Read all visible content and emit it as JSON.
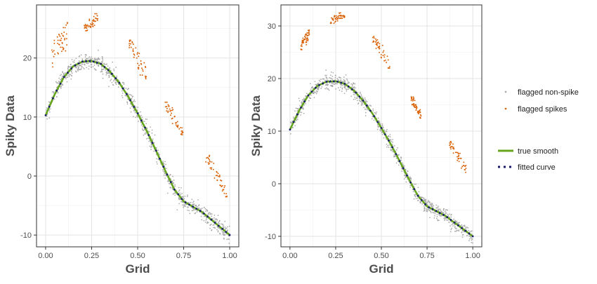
{
  "chart_data": [
    {
      "type": "scatter",
      "panel": "left",
      "xlabel": "Grid",
      "ylabel": "Spiky Data",
      "xlim": [
        0,
        1
      ],
      "ylim": [
        -12,
        29
      ],
      "x_ticks": [
        0,
        0.25,
        0.5,
        0.75,
        1
      ],
      "x_tick_labels": [
        "0.00",
        "0.25",
        "0.50",
        "0.75",
        "1.00"
      ],
      "y_ticks": [
        -10,
        0,
        10,
        20
      ],
      "y_tick_labels": [
        "-10",
        "0",
        "10",
        "20"
      ],
      "grid": true,
      "series": [
        {
          "name": "flagged non-spike",
          "kind": "points",
          "color": "#a6a6a6",
          "description_free": true,
          "x": [
            0.0,
            0.05,
            0.1,
            0.15,
            0.2,
            0.25,
            0.3,
            0.35,
            0.4,
            0.45,
            0.5,
            0.55,
            0.6,
            0.65,
            0.7,
            0.75,
            0.8,
            0.85,
            0.9,
            0.95,
            1.0
          ],
          "y": [
            10.3,
            13.9,
            16.8,
            18.6,
            19.4,
            19.5,
            19.0,
            17.7,
            15.8,
            13.4,
            10.6,
            7.6,
            4.3,
            0.9,
            -2.3,
            -4.3,
            -5.2,
            -6.1,
            -7.4,
            -8.7,
            -10.0
          ]
        },
        {
          "name": "flagged spikes",
          "kind": "points",
          "color": "#d95f02",
          "clusters": [
            {
              "x": [
                0.03,
                0.12
              ],
              "y": [
                18.5,
                26
              ]
            },
            {
              "x": [
                0.21,
                0.29
              ],
              "y": [
                24.5,
                27.5
              ]
            },
            {
              "x": [
                0.45,
                0.55
              ],
              "y": [
                16.5,
                23
              ]
            },
            {
              "x": [
                0.65,
                0.75
              ],
              "y": [
                7,
                12.5
              ]
            },
            {
              "x": [
                0.87,
                0.99
              ],
              "y": [
                -3.5,
                3.5
              ]
            }
          ]
        },
        {
          "name": "true smooth",
          "kind": "line",
          "color": "#66a61e",
          "x": [
            0.0,
            0.05,
            0.1,
            0.15,
            0.2,
            0.25,
            0.3,
            0.35,
            0.4,
            0.45,
            0.5,
            0.55,
            0.6,
            0.65,
            0.7,
            0.75,
            0.8,
            0.85,
            0.9,
            0.95,
            1.0
          ],
          "y": [
            10.3,
            13.9,
            16.8,
            18.6,
            19.4,
            19.5,
            19.0,
            17.7,
            15.8,
            13.4,
            10.6,
            7.6,
            4.3,
            0.9,
            -2.3,
            -4.3,
            -5.2,
            -6.1,
            -7.4,
            -8.7,
            -10.0
          ]
        },
        {
          "name": "fitted curve",
          "kind": "dotted",
          "color": "#1b1b6e",
          "x": [
            0.0,
            0.05,
            0.1,
            0.15,
            0.2,
            0.25,
            0.3,
            0.35,
            0.4,
            0.45,
            0.5,
            0.55,
            0.6,
            0.65,
            0.7,
            0.75,
            0.8,
            0.85,
            0.9,
            0.95,
            1.0
          ],
          "y": [
            10.3,
            13.9,
            16.8,
            18.6,
            19.4,
            19.5,
            19.0,
            17.7,
            15.8,
            13.4,
            10.6,
            7.6,
            4.3,
            0.9,
            -2.3,
            -4.3,
            -5.2,
            -6.1,
            -7.4,
            -8.7,
            -10.0
          ]
        }
      ]
    },
    {
      "type": "scatter",
      "panel": "right",
      "xlabel": "Grid",
      "ylabel": "Spiky Data",
      "xlim": [
        0,
        1
      ],
      "ylim": [
        -12,
        34
      ],
      "x_ticks": [
        0,
        0.25,
        0.5,
        0.75,
        1
      ],
      "x_tick_labels": [
        "0.00",
        "0.25",
        "0.50",
        "0.75",
        "1.00"
      ],
      "y_ticks": [
        -10,
        0,
        10,
        20,
        30
      ],
      "y_tick_labels": [
        "-10",
        "0",
        "10",
        "20",
        "30"
      ],
      "grid": true,
      "series": [
        {
          "name": "flagged non-spike",
          "kind": "points",
          "color": "#a6a6a6",
          "x": [
            0.0,
            0.05,
            0.1,
            0.15,
            0.2,
            0.25,
            0.3,
            0.35,
            0.4,
            0.45,
            0.5,
            0.55,
            0.6,
            0.65,
            0.7,
            0.75,
            0.8,
            0.85,
            0.9,
            0.95,
            1.0
          ],
          "y": [
            10.3,
            13.9,
            16.8,
            18.6,
            19.4,
            19.5,
            19.0,
            17.7,
            15.8,
            13.4,
            10.6,
            7.6,
            4.3,
            0.9,
            -2.3,
            -4.3,
            -5.2,
            -6.1,
            -7.4,
            -8.7,
            -10.0
          ]
        },
        {
          "name": "flagged spikes",
          "kind": "points",
          "color": "#d95f02",
          "clusters": [
            {
              "x": [
                0.06,
                0.11
              ],
              "y": [
                25.5,
                29.5
              ]
            },
            {
              "x": [
                0.22,
                0.3
              ],
              "y": [
                30.5,
                32.5
              ]
            },
            {
              "x": [
                0.45,
                0.55
              ],
              "y": [
                22,
                28
              ]
            },
            {
              "x": [
                0.66,
                0.72
              ],
              "y": [
                12.5,
                16.5
              ]
            },
            {
              "x": [
                0.87,
                0.97
              ],
              "y": [
                2,
                8
              ]
            }
          ]
        },
        {
          "name": "true smooth",
          "kind": "line",
          "color": "#66a61e",
          "x": [
            0.0,
            0.05,
            0.1,
            0.15,
            0.2,
            0.25,
            0.3,
            0.35,
            0.4,
            0.45,
            0.5,
            0.55,
            0.6,
            0.65,
            0.7,
            0.75,
            0.8,
            0.85,
            0.9,
            0.95,
            1.0
          ],
          "y": [
            10.3,
            13.9,
            16.8,
            18.6,
            19.4,
            19.5,
            19.0,
            17.7,
            15.8,
            13.4,
            10.6,
            7.6,
            4.3,
            0.9,
            -2.3,
            -4.3,
            -5.2,
            -6.1,
            -7.4,
            -8.7,
            -10.0
          ]
        },
        {
          "name": "fitted curve",
          "kind": "dotted",
          "color": "#1b1b6e",
          "x": [
            0.0,
            0.05,
            0.1,
            0.15,
            0.2,
            0.25,
            0.3,
            0.35,
            0.4,
            0.45,
            0.5,
            0.55,
            0.6,
            0.65,
            0.7,
            0.75,
            0.8,
            0.85,
            0.9,
            0.95,
            1.0
          ],
          "y": [
            10.3,
            13.9,
            16.8,
            18.6,
            19.4,
            19.5,
            19.0,
            17.7,
            15.8,
            13.4,
            10.6,
            7.6,
            4.3,
            0.9,
            -2.3,
            -4.3,
            -5.2,
            -6.1,
            -7.4,
            -8.7,
            -10.0
          ]
        }
      ]
    }
  ],
  "legend": {
    "placement": "right",
    "items": [
      {
        "label": "flagged non-spike",
        "symbol": "point",
        "color": "#a6a6a6"
      },
      {
        "label": "flagged spikes",
        "symbol": "point",
        "color": "#d95f02"
      },
      {
        "label": "true smooth",
        "symbol": "line",
        "color": "#66a61e"
      },
      {
        "label": "fitted curve",
        "symbol": "dots",
        "color": "#1b1b6e"
      }
    ]
  }
}
